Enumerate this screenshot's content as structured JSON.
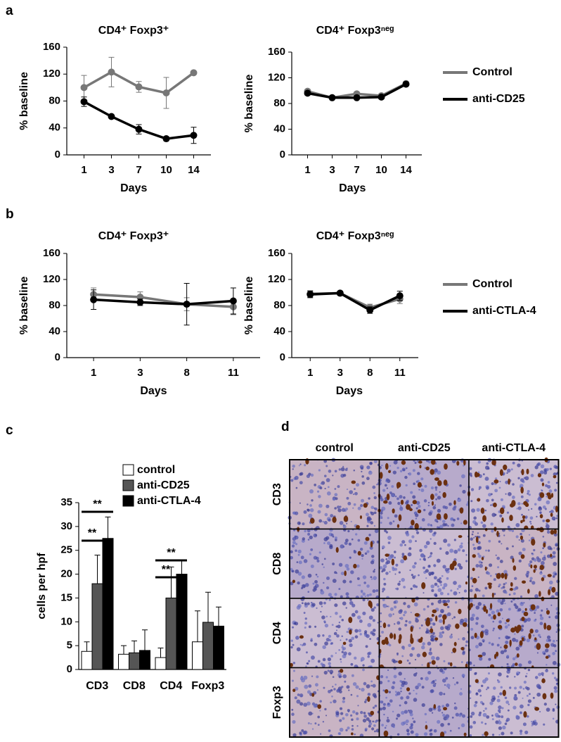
{
  "panel_labels": [
    "a",
    "b",
    "c",
    "d"
  ],
  "chart_data": [
    {
      "type": "line",
      "title": "CD4⁺ Foxp3⁺",
      "x_label": "Days",
      "y_label": "% baseline",
      "categories": [
        "1",
        "3",
        "7",
        "10",
        "14"
      ],
      "ylim": [
        0,
        160
      ],
      "yticks": [
        0,
        40,
        80,
        120,
        160
      ],
      "legend": false,
      "series": [
        {
          "color": "#777777",
          "values": [
            100,
            123,
            101,
            92,
            122
          ],
          "errors": [
            18,
            22,
            8,
            23,
            0
          ]
        },
        {
          "color": "#000000",
          "values": [
            79,
            57,
            38,
            24,
            29
          ],
          "errors": [
            7,
            2,
            7,
            3,
            12
          ]
        }
      ]
    },
    {
      "type": "line",
      "title": "CD4⁺ Foxp3ⁿᵉᵍ",
      "x_label": "Days",
      "y_label": "% baseline",
      "categories": [
        "1",
        "3",
        "7",
        "10",
        "14"
      ],
      "ylim": [
        0,
        160
      ],
      "yticks": [
        0,
        40,
        80,
        120,
        160
      ],
      "legend": true,
      "series": [
        {
          "name": "Control",
          "color": "#777777",
          "values": [
            99,
            89,
            95,
            92,
            111
          ],
          "errors": [
            3,
            2,
            2,
            3,
            2
          ]
        },
        {
          "name": "anti-CD25",
          "color": "#000000",
          "values": [
            96,
            89,
            89,
            90,
            110
          ],
          "errors": [
            3,
            2,
            2,
            2,
            2
          ]
        }
      ]
    },
    {
      "type": "line",
      "title": "CD4⁺ Foxp3⁺",
      "x_label": "Days",
      "y_label": "% baseline",
      "categories": [
        "1",
        "3",
        "8",
        "11"
      ],
      "ylim": [
        0,
        160
      ],
      "yticks": [
        0,
        40,
        80,
        120,
        160
      ],
      "legend": false,
      "series": [
        {
          "color": "#777777",
          "values": [
            97,
            93,
            82,
            78
          ],
          "errors": [
            10,
            8,
            10,
            12
          ]
        },
        {
          "color": "#000000",
          "values": [
            89,
            85,
            82,
            87
          ],
          "errors": [
            15,
            5,
            32,
            20
          ]
        }
      ]
    },
    {
      "type": "line",
      "title": "CD4⁺ Foxp3ⁿᵉᵍ",
      "x_label": "Days",
      "y_label": "% baseline",
      "categories": [
        "1",
        "3",
        "8",
        "11"
      ],
      "ylim": [
        0,
        160
      ],
      "yticks": [
        0,
        40,
        80,
        120,
        160
      ],
      "legend": true,
      "series": [
        {
          "name": "Control",
          "color": "#777777",
          "values": [
            98,
            99,
            77,
            90
          ],
          "errors": [
            5,
            3,
            5,
            7
          ]
        },
        {
          "name": "anti-CTLA-4",
          "color": "#000000",
          "values": [
            97,
            99,
            73,
            95
          ],
          "errors": [
            5,
            3,
            5,
            7
          ]
        }
      ]
    },
    {
      "type": "bar",
      "y_label": "cells per hpf",
      "categories": [
        "CD3",
        "CD8",
        "CD4",
        "Foxp3"
      ],
      "ylim": [
        0,
        35
      ],
      "yticks": [
        0,
        5,
        10,
        15,
        20,
        25,
        30,
        35
      ],
      "legend": true,
      "annotations": [
        "**",
        "**",
        "**",
        "**"
      ],
      "series": [
        {
          "name": "control",
          "color": "#ffffff",
          "values": [
            3.8,
            3.2,
            2.5,
            5.8
          ],
          "errors": [
            2,
            1.8,
            2,
            6.5
          ]
        },
        {
          "name": "anti-CD25",
          "color": "#555555",
          "values": [
            18,
            3.5,
            15,
            9.9
          ],
          "errors": [
            6,
            2.5,
            6.5,
            6.3
          ]
        },
        {
          "name": "anti-CTLA-4",
          "color": "#000000",
          "values": [
            27.5,
            4,
            20,
            9.1
          ],
          "errors": [
            4.5,
            4.3,
            3,
            4
          ]
        }
      ]
    }
  ],
  "image_grid": {
    "columns": [
      "control",
      "anti-CD25",
      "anti-CTLA-4"
    ],
    "rows": [
      "CD3",
      "CD8",
      "CD4",
      "Foxp3"
    ]
  }
}
